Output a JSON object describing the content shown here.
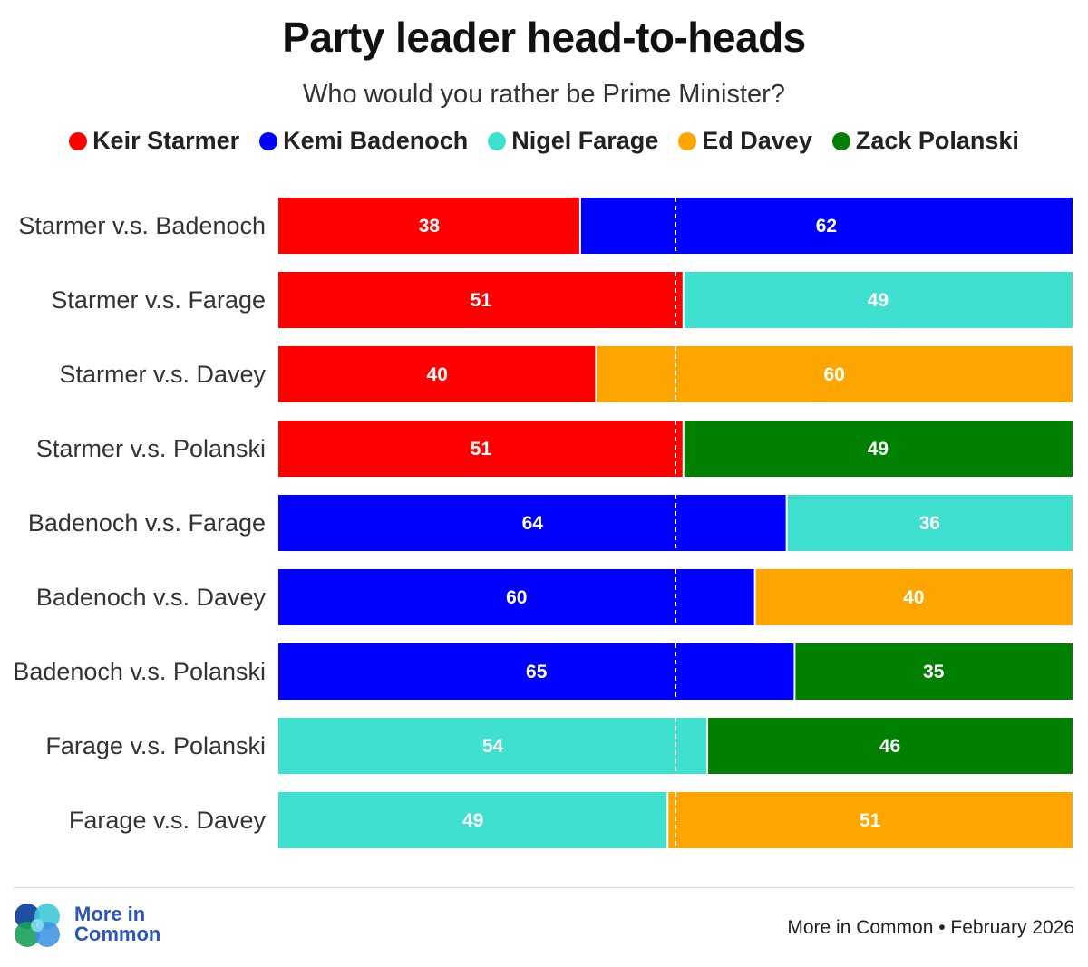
{
  "chart_data": {
    "type": "bar",
    "orientation": "horizontal",
    "stacked": true,
    "title": "Party leader head-to-heads",
    "subtitle": "Who would you rather be Prime Minister?",
    "legend_position": "top",
    "xlim": [
      0,
      100
    ],
    "midline": 50,
    "legend": [
      {
        "name": "Keir Starmer",
        "color": "#ff0000"
      },
      {
        "name": "Kemi Badenoch",
        "color": "#0000ff"
      },
      {
        "name": "Nigel Farage",
        "color": "#40e0d0"
      },
      {
        "name": "Ed Davey",
        "color": "#ffa500"
      },
      {
        "name": "Zack Polanski",
        "color": "#008000"
      }
    ],
    "rows": [
      {
        "label": "Starmer v.s. Badenoch",
        "left": {
          "leader": "Keir Starmer",
          "value": 38
        },
        "right": {
          "leader": "Kemi Badenoch",
          "value": 62
        }
      },
      {
        "label": "Starmer v.s. Farage",
        "left": {
          "leader": "Keir Starmer",
          "value": 51
        },
        "right": {
          "leader": "Nigel Farage",
          "value": 49
        }
      },
      {
        "label": "Starmer v.s. Davey",
        "left": {
          "leader": "Keir Starmer",
          "value": 40
        },
        "right": {
          "leader": "Ed Davey",
          "value": 60
        }
      },
      {
        "label": "Starmer v.s. Polanski",
        "left": {
          "leader": "Keir Starmer",
          "value": 51
        },
        "right": {
          "leader": "Zack Polanski",
          "value": 49
        }
      },
      {
        "label": "Badenoch v.s. Farage",
        "left": {
          "leader": "Kemi Badenoch",
          "value": 64
        },
        "right": {
          "leader": "Nigel Farage",
          "value": 36
        }
      },
      {
        "label": "Badenoch v.s. Davey",
        "left": {
          "leader": "Kemi Badenoch",
          "value": 60
        },
        "right": {
          "leader": "Ed Davey",
          "value": 40
        }
      },
      {
        "label": "Badenoch v.s. Polanski",
        "left": {
          "leader": "Kemi Badenoch",
          "value": 65
        },
        "right": {
          "leader": "Zack Polanski",
          "value": 35
        }
      },
      {
        "label": "Farage v.s. Polanski",
        "left": {
          "leader": "Nigel Farage",
          "value": 54
        },
        "right": {
          "leader": "Zack Polanski",
          "value": 46
        }
      },
      {
        "label": "Farage v.s. Davey",
        "left": {
          "leader": "Nigel Farage",
          "value": 49
        },
        "right": {
          "leader": "Ed Davey",
          "value": 51
        }
      }
    ]
  },
  "footer": {
    "brand_line1": "More in",
    "brand_line2": "Common",
    "source": "More in Common • February 2026",
    "logo_icon": "more-in-common-logo-icon",
    "logo_colors": [
      "#1f4fa3",
      "#40c8d8",
      "#1aa05a",
      "#3a8fe0"
    ]
  }
}
